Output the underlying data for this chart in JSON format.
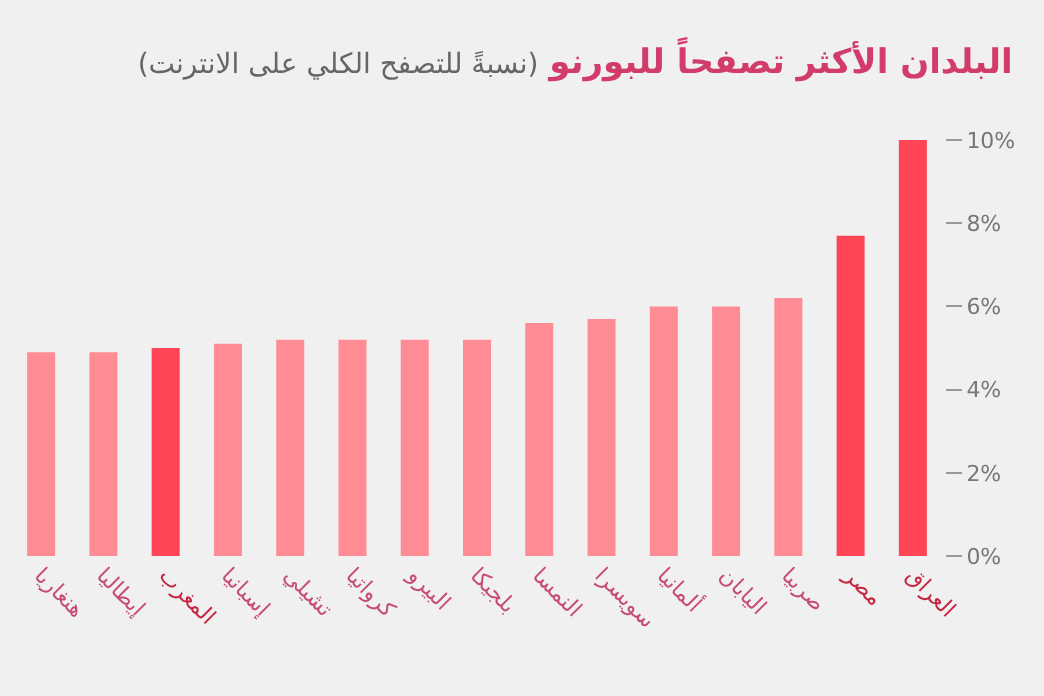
{
  "chart_data": {
    "type": "bar",
    "title": "البلدان الأكثر تصفحاً للبورنو",
    "subtitle": "(نسبةً للتصفح الكلي على الانترنت)",
    "categories": [
      "هنغاريا",
      "إيطاليا",
      "المغرب",
      "إسبانيا",
      "تشيلي",
      "كرواتيا",
      "البيرو",
      "بلجيكا",
      "النمسا",
      "سويسرا",
      "ألمانيا",
      "اليابان",
      "صربيا",
      "مصر",
      "العراق"
    ],
    "values": [
      4.9,
      4.9,
      5.0,
      5.1,
      5.2,
      5.2,
      5.2,
      5.2,
      5.6,
      5.7,
      6.0,
      6.0,
      6.2,
      7.7,
      10.0
    ],
    "colors": [
      "#ff8c94",
      "#ff8c94",
      "#ff4455",
      "#ff8c94",
      "#ff8c94",
      "#ff8c94",
      "#ff8c94",
      "#ff8c94",
      "#ff8c94",
      "#ff8c94",
      "#ff8c94",
      "#ff8c94",
      "#ff8c94",
      "#ff4455",
      "#ff4455"
    ],
    "ylim": [
      0,
      10
    ],
    "yticks": [
      {
        "value": 0,
        "label": "0%"
      },
      {
        "value": 2,
        "label": "2%"
      },
      {
        "value": 4,
        "label": "4%"
      },
      {
        "value": 6,
        "label": "6%"
      },
      {
        "value": 8,
        "label": "8%"
      },
      {
        "value": 10,
        "label": "10%"
      }
    ],
    "grid": false
  }
}
